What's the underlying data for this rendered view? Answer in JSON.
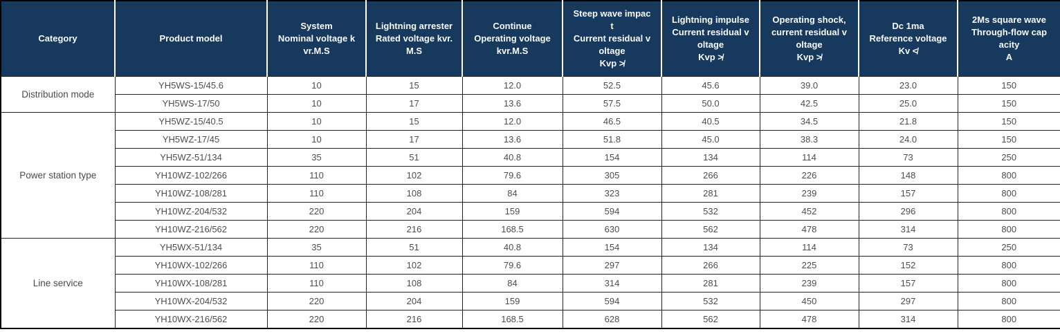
{
  "table": {
    "columns": [
      {
        "label": "Category"
      },
      {
        "label": "Product model"
      },
      {
        "label": "System\nNominal voltage k\nvr.M.S"
      },
      {
        "label": "Lightning arrester\nRated voltage kvr.\nM.S"
      },
      {
        "label": "Continue\nOperating voltage\nkvr.M.S"
      },
      {
        "label": "Steep wave impac\nt\nCurrent residual v\noltage\nKvp ≯"
      },
      {
        "label": "Lightning impulse\nCurrent residual v\noltage\nKvp ≯"
      },
      {
        "label": "Operating shock,\ncurrent residual v\noltage\nKvp ≯"
      },
      {
        "label": "Dc 1ma\nReference voltage\nKv ≮"
      },
      {
        "label": "2Ms square wave\nThrough-flow cap\nacity\nA"
      }
    ],
    "groups": [
      {
        "category": "Distribution mode",
        "rows": [
          {
            "model": "YH5WS-15/45.6",
            "values": [
              "10",
              "15",
              "12.0",
              "52.5",
              "45.6",
              "39.0",
              "23.0",
              "150"
            ]
          },
          {
            "model": "YH5WS-17/50",
            "values": [
              "10",
              "17",
              "13.6",
              "57.5",
              "50.0",
              "42.5",
              "25.0",
              "150"
            ]
          }
        ]
      },
      {
        "category": "Power station type",
        "rows": [
          {
            "model": "YH5WZ-15/40.5",
            "values": [
              "10",
              "15",
              "12.0",
              "46.5",
              "40.5",
              "34.5",
              "21.8",
              "150"
            ]
          },
          {
            "model": "YH5WZ-17/45",
            "values": [
              "10",
              "17",
              "13.6",
              "51.8",
              "45.0",
              "38.3",
              "24.0",
              "150"
            ]
          },
          {
            "model": "YH5WZ-51/134",
            "values": [
              "35",
              "51",
              "40.8",
              "154",
              "134",
              "114",
              "73",
              "250"
            ]
          },
          {
            "model": "YH10WZ-102/266",
            "values": [
              "110",
              "102",
              "79.6",
              "305",
              "266",
              "226",
              "148",
              "800"
            ]
          },
          {
            "model": "YH10WZ-108/281",
            "values": [
              "110",
              "108",
              "84",
              "323",
              "281",
              "239",
              "157",
              "800"
            ]
          },
          {
            "model": "YH10WZ-204/532",
            "values": [
              "220",
              "204",
              "159",
              "594",
              "532",
              "452",
              "296",
              "800"
            ]
          },
          {
            "model": "YH10WZ-216/562",
            "values": [
              "220",
              "216",
              "168.5",
              "630",
              "562",
              "478",
              "314",
              "800"
            ]
          }
        ]
      },
      {
        "category": "Line service",
        "rows": [
          {
            "model": "YH5WX-51/134",
            "values": [
              "35",
              "51",
              "40.8",
              "154",
              "134",
              "114",
              "73",
              "250"
            ]
          },
          {
            "model": "YH10WX-102/266",
            "values": [
              "110",
              "102",
              "79.6",
              "297",
              "266",
              "225",
              "152",
              "800"
            ]
          },
          {
            "model": "YH10WX-108/281",
            "values": [
              "110",
              "108",
              "84",
              "314",
              "281",
              "239",
              "157",
              "800"
            ]
          },
          {
            "model": "YH10WX-204/532",
            "values": [
              "220",
              "204",
              "159",
              "594",
              "532",
              "450",
              "297",
              "800"
            ]
          },
          {
            "model": "YH10WX-216/562",
            "values": [
              "220",
              "216",
              "168.5",
              "628",
              "562",
              "478",
              "314",
              "800"
            ]
          }
        ]
      }
    ]
  },
  "colors": {
    "header_background": "#18395e",
    "header_text": "#f7fafc",
    "body_text": "#4d4d4d",
    "border": "#000000",
    "header_divider": "#ffffff"
  }
}
